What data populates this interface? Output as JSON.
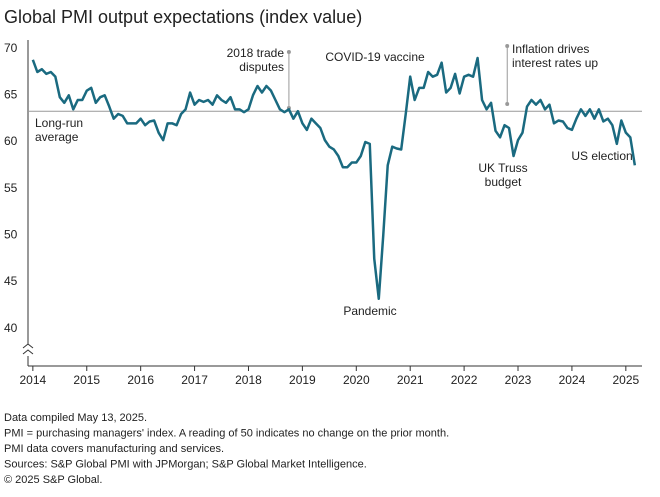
{
  "chart_data": {
    "type": "line",
    "title": "Global PMI output expectations (index value)",
    "x": [
      2014,
      2014.083,
      2014.167,
      2014.25,
      2014.333,
      2014.417,
      2014.5,
      2014.583,
      2014.667,
      2014.75,
      2014.833,
      2014.917,
      2015,
      2015.083,
      2015.167,
      2015.25,
      2015.333,
      2015.417,
      2015.5,
      2015.583,
      2015.667,
      2015.75,
      2015.833,
      2015.917,
      2016,
      2016.083,
      2016.167,
      2016.25,
      2016.333,
      2016.417,
      2016.5,
      2016.583,
      2016.667,
      2016.75,
      2016.833,
      2016.917,
      2017,
      2017.083,
      2017.167,
      2017.25,
      2017.333,
      2017.417,
      2017.5,
      2017.583,
      2017.667,
      2017.75,
      2017.833,
      2017.917,
      2018,
      2018.083,
      2018.167,
      2018.25,
      2018.333,
      2018.417,
      2018.5,
      2018.583,
      2018.667,
      2018.75,
      2018.833,
      2018.917,
      2019,
      2019.083,
      2019.167,
      2019.25,
      2019.333,
      2019.417,
      2019.5,
      2019.583,
      2019.667,
      2019.75,
      2019.833,
      2019.917,
      2020,
      2020.083,
      2020.167,
      2020.25,
      2020.333,
      2020.417,
      2020.5,
      2020.583,
      2020.667,
      2020.75,
      2020.833,
      2020.917,
      2021,
      2021.083,
      2021.167,
      2021.25,
      2021.333,
      2021.417,
      2021.5,
      2021.583,
      2021.667,
      2021.75,
      2021.833,
      2021.917,
      2022,
      2022.083,
      2022.167,
      2022.25,
      2022.333,
      2022.417,
      2022.5,
      2022.583,
      2022.667,
      2022.75,
      2022.833,
      2022.917,
      2023,
      2023.083,
      2023.167,
      2023.25,
      2023.333,
      2023.417,
      2023.5,
      2023.583,
      2023.667,
      2023.75,
      2023.833,
      2023.917,
      2024,
      2024.083,
      2024.167,
      2024.25,
      2024.333,
      2024.417,
      2024.5,
      2024.583,
      2024.667,
      2024.75,
      2024.833,
      2024.917,
      2025,
      2025.083,
      2025.167
    ],
    "series": [
      {
        "color": "#1a6a80",
        "values": [
          68.8,
          67.5,
          67.8,
          67.3,
          67.5,
          67,
          64.8,
          64.2,
          65,
          63.5,
          64.5,
          64.5,
          65.5,
          65.8,
          64.2,
          64.8,
          65,
          63.8,
          62.5,
          63,
          62.8,
          62,
          62,
          62,
          62.5,
          61.8,
          62.2,
          62.3,
          61,
          60.2,
          62,
          62,
          61.8,
          63,
          63.5,
          65.3,
          64,
          64.5,
          64.3,
          64.5,
          64,
          65,
          64.5,
          64.2,
          64.8,
          63.5,
          63.5,
          63.2,
          63.5,
          65,
          66,
          65.3,
          66,
          65.5,
          64.5,
          63.5,
          63.2,
          63.5,
          62.5,
          63.3,
          62,
          61.3,
          62.5,
          62,
          61.5,
          60.2,
          59.5,
          59.2,
          58.5,
          57.3,
          57.3,
          57.8,
          57.8,
          58.5,
          60,
          59.8,
          47.5,
          43.2,
          50,
          57.5,
          59.5,
          59.3,
          59.2,
          63,
          67,
          64.5,
          65.8,
          65.8,
          67.5,
          67,
          67.2,
          68.5,
          65.3,
          65.8,
          67.3,
          65.2,
          67,
          67.2,
          67,
          69,
          64.5,
          63.5,
          64.2,
          61.2,
          60.5,
          61.8,
          61.5,
          58.5,
          60.2,
          61,
          63.8,
          64.5,
          64,
          64.5,
          63.5,
          64,
          62,
          62.3,
          62.2,
          61.5,
          61.3,
          62.5,
          63.5,
          62.8,
          63.5,
          62.5,
          63.5,
          62.2,
          62.5,
          61.8,
          59.8,
          62.3,
          61,
          60.5,
          57.5
        ]
      }
    ],
    "xlim": [
      2013.91,
      2025.3
    ],
    "xticks": [
      2014,
      2015,
      2016,
      2017,
      2018,
      2019,
      2020,
      2021,
      2022,
      2023,
      2024,
      2025
    ],
    "ylim": [
      36,
      70.5
    ],
    "yticks": [
      40,
      45,
      50,
      55,
      60,
      65,
      70
    ],
    "long_run_average": 63.3,
    "annotations": [
      {
        "lines": [
          "Long-run",
          "average"
        ]
      },
      {
        "lines": [
          "2018 trade",
          "disputes"
        ],
        "x": 2018.75
      },
      {
        "lines": [
          "COVID-19 vaccine"
        ]
      },
      {
        "lines": [
          "Inflation drives",
          "interest rates up"
        ],
        "x": 2022.8
      },
      {
        "lines": [
          "Pandemic"
        ]
      },
      {
        "lines": [
          "UK Truss",
          "budget"
        ]
      },
      {
        "lines": [
          "US election"
        ]
      }
    ],
    "footnotes": [
      "Data compiled May 13, 2025.",
      "PMI = purchasing managers' index. A reading of 50 indicates no change on the prior month.",
      "PMI data covers manufacturing and services.",
      "Sources: S&P Global PMI with JPMorgan; S&P Global Market Intelligence.",
      "© 2025 S&P Global."
    ]
  }
}
